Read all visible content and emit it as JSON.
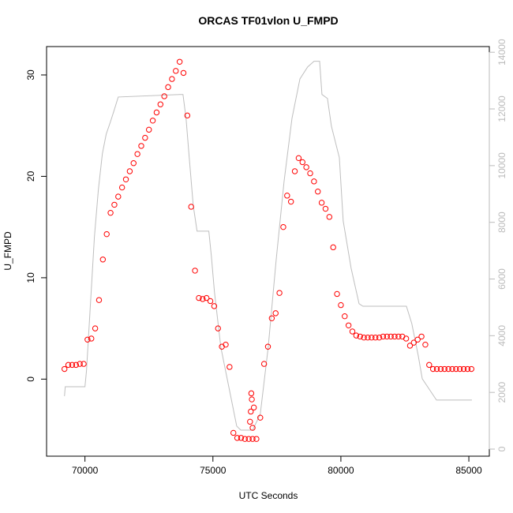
{
  "chart_data": {
    "type": "scatter",
    "title": "ORCAS TF01vlon U_FMPD",
    "x_label": "UTC Seconds",
    "y_label": "U_FMPD",
    "xlim": [
      68500,
      85800
    ],
    "xticks": [
      70000,
      75000,
      80000,
      85000
    ],
    "ylim": [
      -7.6,
      32.8
    ],
    "yticks": [
      0,
      10,
      20,
      30
    ],
    "y2lim": [
      -250,
      14200
    ],
    "y2ticks": [
      0,
      2000,
      4000,
      6000,
      8000,
      10000,
      12000,
      14000
    ],
    "series": [
      {
        "type": "scatter",
        "color": "#ff0000",
        "x": [
          69200,
          69350,
          69500,
          69650,
          69800,
          69950,
          70100,
          70250,
          70400,
          70550,
          70700,
          70850,
          71000,
          71150,
          71300,
          71450,
          71600,
          71750,
          71900,
          72050,
          72200,
          72350,
          72500,
          72650,
          72800,
          72950,
          73100,
          73250,
          73400,
          73550,
          73700,
          73850,
          74000,
          74150,
          74300,
          74450,
          74600,
          74750,
          74900,
          75050,
          75200,
          75350,
          75500,
          75650,
          75800,
          75950,
          76100,
          76250,
          76400,
          76550,
          76700,
          76850,
          77000,
          77150,
          77300,
          77450,
          77600,
          77750,
          77900,
          78050,
          78200,
          78350,
          78500,
          78650,
          78800,
          78950,
          79100,
          79250,
          79400,
          79550,
          79700,
          79850,
          80000,
          80150,
          80300,
          80450,
          80600,
          80750,
          80900,
          81050,
          81200,
          81350,
          81500,
          81650,
          81800,
          81950,
          82100,
          82250,
          82400,
          82550,
          82700,
          82850,
          83000,
          83150,
          83300,
          83450,
          83600,
          83750,
          83900,
          84050,
          84200,
          84350,
          84500,
          84650,
          84800,
          84950,
          85100,
          76500,
          76520,
          76480,
          76550,
          76600,
          76450
        ],
        "values": [
          1.0,
          1.4,
          1.4,
          1.4,
          1.5,
          1.5,
          3.9,
          4.0,
          5.0,
          7.8,
          11.8,
          14.3,
          16.4,
          17.2,
          18.0,
          18.9,
          19.7,
          20.5,
          21.3,
          22.2,
          23.0,
          23.8,
          24.6,
          25.5,
          26.3,
          27.1,
          27.9,
          28.8,
          29.6,
          30.4,
          31.3,
          30.2,
          26.0,
          17.0,
          10.7,
          8.0,
          7.9,
          8.0,
          7.7,
          7.2,
          5.0,
          3.2,
          3.4,
          1.2,
          -5.3,
          -5.8,
          -5.8,
          -5.9,
          -5.9,
          -5.9,
          -5.9,
          -3.8,
          1.5,
          3.2,
          6.0,
          6.5,
          8.5,
          15.0,
          18.1,
          17.5,
          20.5,
          21.8,
          21.4,
          20.9,
          20.3,
          19.5,
          18.5,
          17.4,
          16.8,
          16.0,
          13.0,
          8.4,
          7.3,
          6.2,
          5.3,
          4.7,
          4.3,
          4.2,
          4.1,
          4.1,
          4.1,
          4.1,
          4.1,
          4.2,
          4.2,
          4.2,
          4.2,
          4.2,
          4.2,
          4.0,
          3.3,
          3.6,
          3.9,
          4.2,
          3.4,
          1.4,
          1.0,
          1.0,
          1.0,
          1.0,
          1.0,
          1.0,
          1.0,
          1.0,
          1.0,
          1.0,
          1.0,
          -1.4,
          -2.0,
          -3.2,
          -4.8,
          -2.8,
          -4.2
        ]
      },
      {
        "type": "line",
        "color": "#bebebe",
        "axis": "y2",
        "x": [
          69200,
          69230,
          70000,
          70060,
          70370,
          70525,
          70680,
          70830,
          70990,
          71140,
          71300,
          73700,
          73830,
          73950,
          74075,
          74230,
          74380,
          74840,
          74940,
          75060,
          75310,
          75620,
          75930,
          76090,
          76550,
          76850,
          77160,
          77470,
          77780,
          78090,
          78400,
          78700,
          78950,
          79170,
          79260,
          79475,
          79630,
          79940,
          80090,
          80400,
          80710,
          80860,
          82560,
          82770,
          83020,
          83180,
          83490,
          83735,
          85120
        ],
        "values": [
          1870,
          2200,
          2200,
          2760,
          7490,
          9160,
          10420,
          11110,
          11530,
          11950,
          12420,
          12510,
          12510,
          11670,
          10280,
          8600,
          7690,
          7690,
          6800,
          5540,
          3590,
          2200,
          810,
          670,
          670,
          1230,
          3590,
          6660,
          9440,
          11670,
          13060,
          13480,
          13680,
          13680,
          12510,
          12370,
          11390,
          10280,
          8050,
          6380,
          5130,
          5040,
          5040,
          4430,
          3310,
          2480,
          2060,
          1730,
          1730
        ]
      }
    ]
  }
}
